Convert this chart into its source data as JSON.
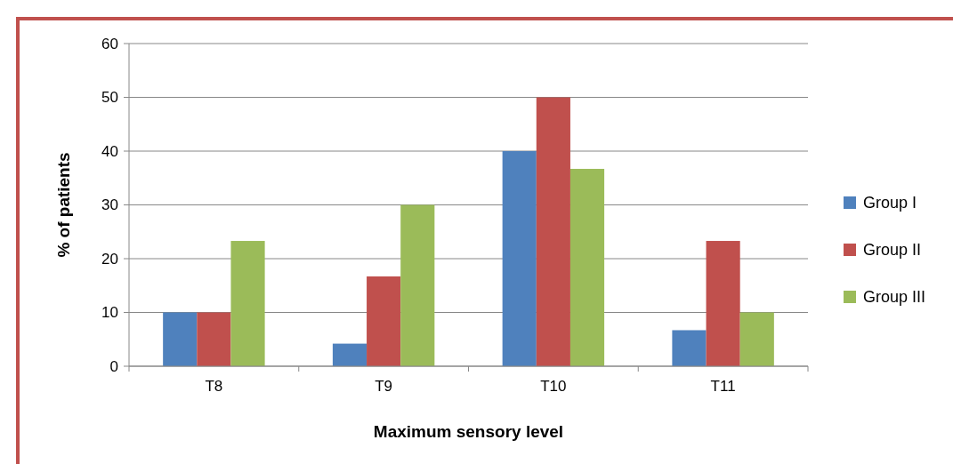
{
  "chart_data": {
    "type": "bar",
    "xlabel": "Maximum sensory level",
    "ylabel": "% of patients",
    "categories": [
      "T8",
      "T9",
      "T10",
      "T11"
    ],
    "series": [
      {
        "name": "Group I",
        "color": "#4f81bd",
        "values": [
          10,
          4.2,
          40,
          6.7
        ]
      },
      {
        "name": "Group II",
        "color": "#c0504d",
        "values": [
          10,
          16.7,
          50,
          23.3
        ]
      },
      {
        "name": "Group III",
        "color": "#9bbb59",
        "values": [
          23.3,
          30,
          36.7,
          10
        ]
      }
    ],
    "ylim": [
      0,
      60
    ],
    "yticks": [
      0,
      10,
      20,
      30,
      40,
      50,
      60
    ],
    "grid": "y",
    "legend": "right"
  }
}
